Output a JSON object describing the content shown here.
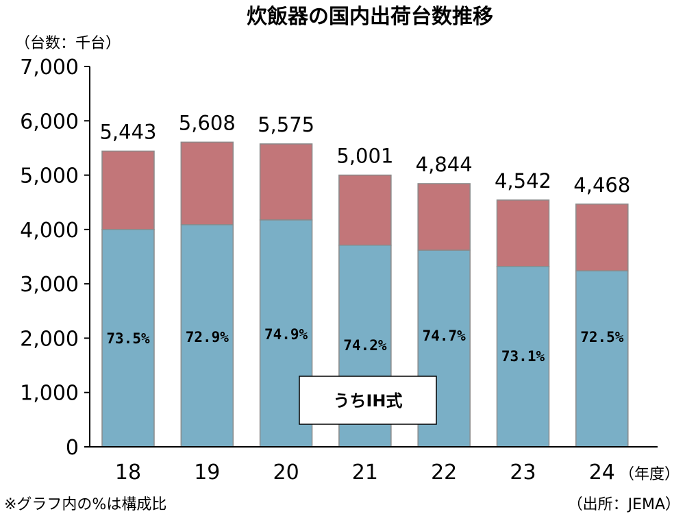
{
  "chart_data": {
    "type": "bar",
    "stacked": true,
    "title": "炊飯器の国内出荷台数推移",
    "unit_label": "（台数：千台）",
    "xlabel": "",
    "x_unit_label": "（年度）",
    "ylabel": "",
    "ylim": [
      0,
      7000
    ],
    "yticks": [
      0,
      1000,
      2000,
      3000,
      4000,
      5000,
      6000,
      7000
    ],
    "ytick_labels": [
      "0",
      "1,000",
      "2,000",
      "3,000",
      "4,000",
      "5,000",
      "6,000",
      "7,000"
    ],
    "categories": [
      "18",
      "19",
      "20",
      "21",
      "22",
      "23",
      "24"
    ],
    "totals": [
      5443,
      5608,
      5575,
      5001,
      4844,
      4542,
      4468
    ],
    "total_labels": [
      "5,443",
      "5,608",
      "5,575",
      "5,001",
      "4,844",
      "4,542",
      "4,468"
    ],
    "ih_values": [
      4001,
      4088,
      4176,
      3711,
      3618,
      3320,
      3239
    ],
    "ih_share_labels": [
      "73.5%",
      "72.9%",
      "74.9%",
      "74.2%",
      "74.7%",
      "73.1%",
      "72.5%"
    ],
    "legend_label": "うちIH式",
    "legend_placement": "inside-bottom-center",
    "footnote": "※グラフ内の%は構成比",
    "source": "（出所：JEMA）",
    "grid": false,
    "colors": {
      "ih": "#7aafc6",
      "other": "#c27679",
      "bar_edge": "#8a8a8a",
      "axis": "#000000"
    }
  }
}
